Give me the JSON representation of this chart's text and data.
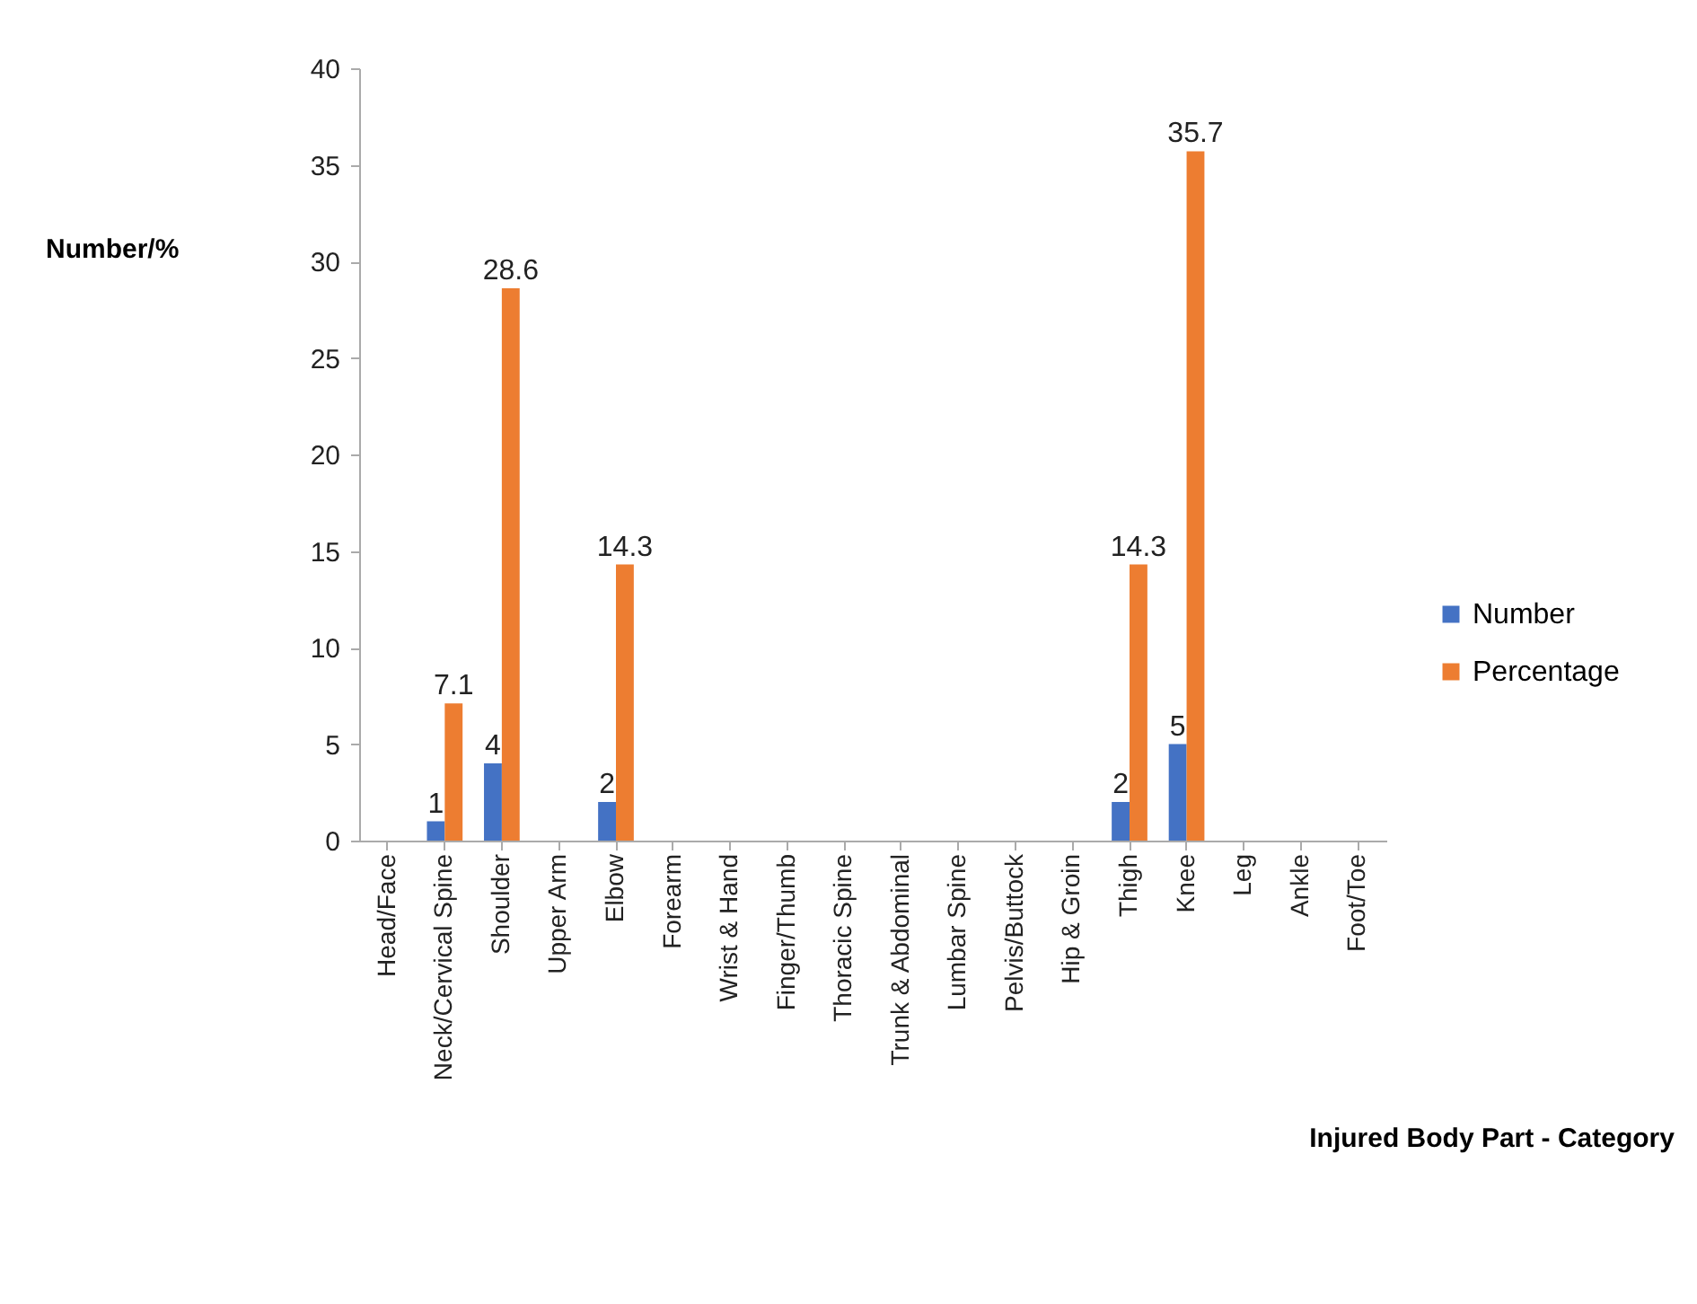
{
  "chart_data": {
    "type": "bar",
    "ylabel": "Number/%",
    "xlabel": "Injured Body Part - Category",
    "categories": [
      "Head/Face",
      "Neck/Cervical Spine",
      "Shoulder",
      "Upper Arm",
      "Elbow",
      "Forearm",
      "Wrist & Hand",
      "Finger/Thumb",
      "Thoracic Spine",
      "Trunk & Abdominal",
      "Lumbar Spine",
      "Pelvis/Buttock",
      "Hip & Groin",
      "Thigh",
      "Knee",
      "Leg",
      "Ankle",
      "Foot/Toe"
    ],
    "series": [
      {
        "name": "Number",
        "color": "#4472c4",
        "values": [
          0,
          1,
          4,
          0,
          2,
          0,
          0,
          0,
          0,
          0,
          0,
          0,
          0,
          2,
          5,
          0,
          0,
          0
        ],
        "value_labels": [
          null,
          "1",
          "4",
          null,
          "2",
          null,
          null,
          null,
          null,
          null,
          null,
          null,
          null,
          "2",
          "5",
          null,
          null,
          null
        ]
      },
      {
        "name": "Percentage",
        "color": "#ed7d31",
        "values": [
          0,
          7.1,
          28.6,
          0,
          14.3,
          0,
          0,
          0,
          0,
          0,
          0,
          0,
          0,
          14.3,
          35.7,
          0,
          0,
          0
        ],
        "value_labels": [
          null,
          "7.1",
          "28.6",
          null,
          "14.3",
          null,
          null,
          null,
          null,
          null,
          null,
          null,
          null,
          "14.3",
          "35.7",
          null,
          null,
          null
        ]
      }
    ],
    "ylim": [
      0,
      40
    ],
    "yticks": [
      0,
      5,
      10,
      15,
      20,
      25,
      30,
      35,
      40
    ],
    "grid": false,
    "legend": "right"
  }
}
